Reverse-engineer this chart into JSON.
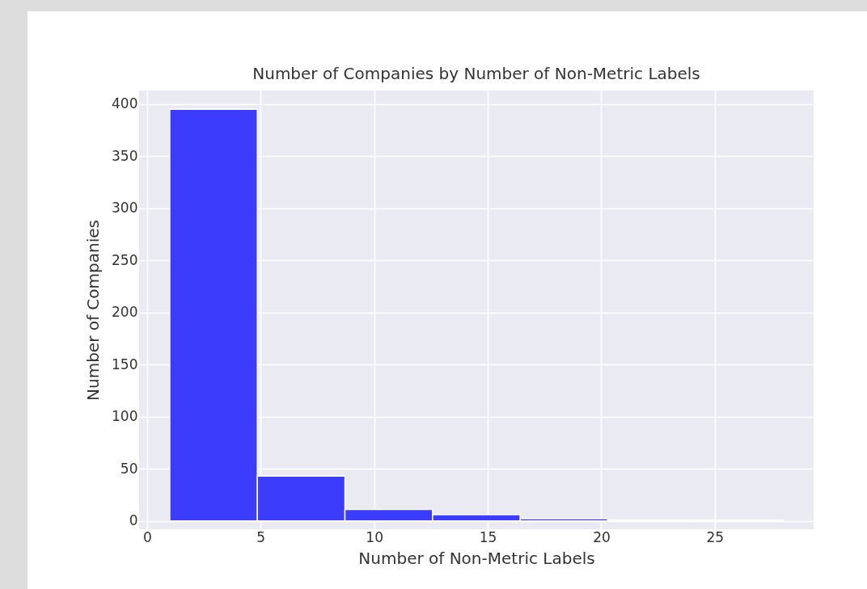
{
  "chart_data": {
    "type": "histogram",
    "title": "Number of Companies by Number of Non-Metric Labels",
    "xlabel": "Number of Non-Metric Labels",
    "ylabel": "Number of Companies",
    "bins": [
      1,
      4.857,
      8.714,
      12.571,
      16.429,
      20.286,
      24.143,
      28
    ],
    "values": [
      395,
      43,
      11,
      6,
      2,
      1,
      1
    ],
    "color": "#3c3cff",
    "xlim": [
      -0.35,
      29.35
    ],
    "xticks": [
      0,
      5,
      10,
      15,
      20,
      25
    ],
    "ylim": [
      -8,
      413
    ],
    "yticks": [
      0,
      50,
      100,
      150,
      200,
      250,
      300,
      350,
      400
    ],
    "grid": true
  }
}
